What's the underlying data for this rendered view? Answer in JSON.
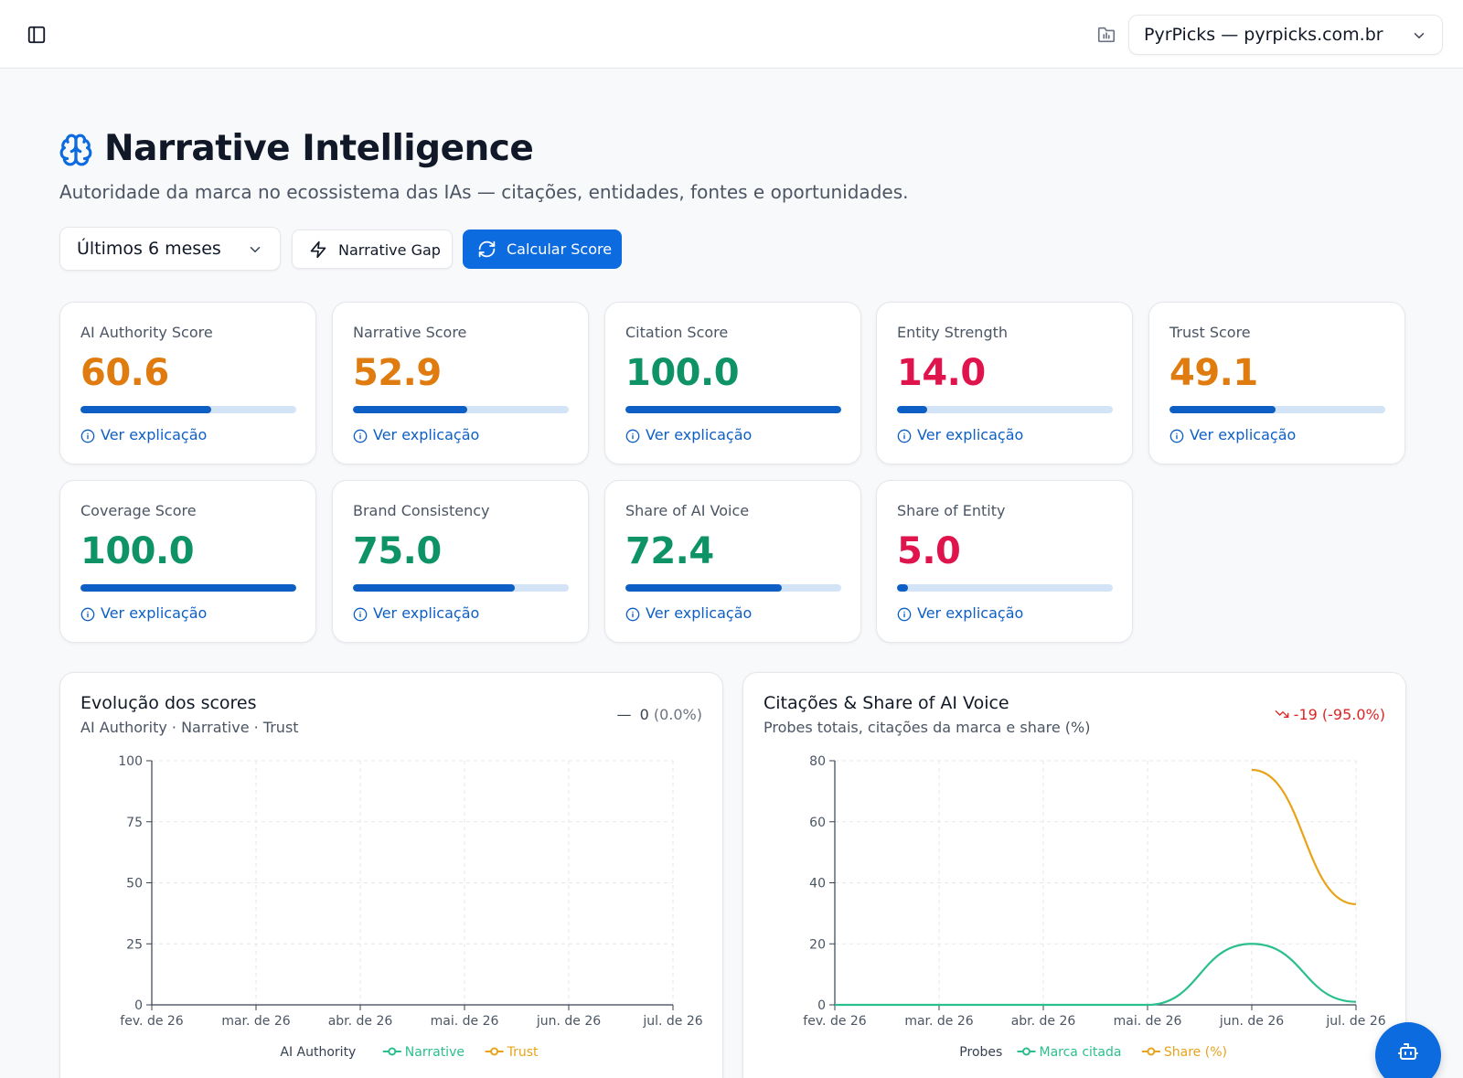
{
  "topbar": {
    "site_selector": {
      "value": "PyrPicks — pyrpicks.com.br"
    }
  },
  "header": {
    "title": "Narrative Intelligence",
    "subtitle": "Autoridade da marca no ecossistema das IAs — citações, entidades, fontes e oportunidades."
  },
  "toolbar": {
    "period": "Últimos 6 meses",
    "narrative_gap_label": "Narrative Gap",
    "calculate_label": "Calcular Score"
  },
  "colors": {
    "accent": "#0d6be0",
    "good": "#0e9366",
    "warning": "#e07b10",
    "bad": "#e0144c",
    "narrative_line": "#2bbf8e",
    "trust_line": "#e8a319"
  },
  "score_cards": [
    {
      "label": "AI Authority Score",
      "value": "60.6",
      "fill": 0.606,
      "status": "warning",
      "explain": "Ver explicação"
    },
    {
      "label": "Narrative Score",
      "value": "52.9",
      "fill": 0.529,
      "status": "warning",
      "explain": "Ver explicação"
    },
    {
      "label": "Citation Score",
      "value": "100.0",
      "fill": 1.0,
      "status": "good",
      "explain": "Ver explicação"
    },
    {
      "label": "Entity Strength",
      "value": "14.0",
      "fill": 0.14,
      "status": "bad",
      "explain": "Ver explicação"
    },
    {
      "label": "Trust Score",
      "value": "49.1",
      "fill": 0.491,
      "status": "warning",
      "explain": "Ver explicação"
    },
    {
      "label": "Coverage Score",
      "value": "100.0",
      "fill": 1.0,
      "status": "good",
      "explain": "Ver explicação"
    },
    {
      "label": "Brand Consistency",
      "value": "75.0",
      "fill": 0.75,
      "status": "good",
      "explain": "Ver explicação"
    },
    {
      "label": "Share of AI Voice",
      "value": "72.4",
      "fill": 0.724,
      "status": "good",
      "explain": "Ver explicação"
    },
    {
      "label": "Share of Entity",
      "value": "5.0",
      "fill": 0.05,
      "status": "bad",
      "explain": "Ver explicação"
    }
  ],
  "panels": {
    "evolution": {
      "title": "Evolução dos scores",
      "subtitle": "AI Authority · Narrative · Trust",
      "delta_value": "0",
      "delta_pct": "(0.0%)"
    },
    "citations": {
      "title": "Citações & Share of AI Voice",
      "subtitle": "Probes totais, citações da marca e share (%)",
      "delta_value": "-19",
      "delta_pct": "(-95.0%)"
    }
  },
  "chart_data": [
    {
      "type": "line",
      "categories": [
        "fev. de 26",
        "mar. de 26",
        "abr. de 26",
        "mai. de 26",
        "jun. de 26",
        "jul. de 26"
      ],
      "ylim": [
        0,
        100
      ],
      "yticks": [
        0,
        25,
        50,
        75,
        100
      ],
      "grid": true,
      "legend_position": "bottom",
      "series": [
        {
          "name": "AI Authority",
          "values": [
            null,
            null,
            null,
            null,
            null,
            null
          ]
        },
        {
          "name": "Narrative",
          "values": [
            null,
            null,
            null,
            null,
            null,
            null
          ]
        },
        {
          "name": "Trust",
          "values": [
            null,
            null,
            null,
            null,
            null,
            null
          ]
        }
      ]
    },
    {
      "type": "line",
      "categories": [
        "fev. de 26",
        "mar. de 26",
        "abr. de 26",
        "mai. de 26",
        "jun. de 26",
        "jul. de 26"
      ],
      "ylim": [
        0,
        80
      ],
      "yticks": [
        0,
        20,
        40,
        60,
        80
      ],
      "grid": true,
      "legend_position": "bottom",
      "series": [
        {
          "name": "Probes",
          "values": [
            null,
            null,
            null,
            null,
            null,
            null
          ]
        },
        {
          "name": "Marca citada",
          "values": [
            0,
            0,
            0,
            0,
            20,
            1
          ]
        },
        {
          "name": "Share (%)",
          "values": [
            null,
            null,
            null,
            null,
            77,
            33
          ]
        }
      ]
    }
  ]
}
